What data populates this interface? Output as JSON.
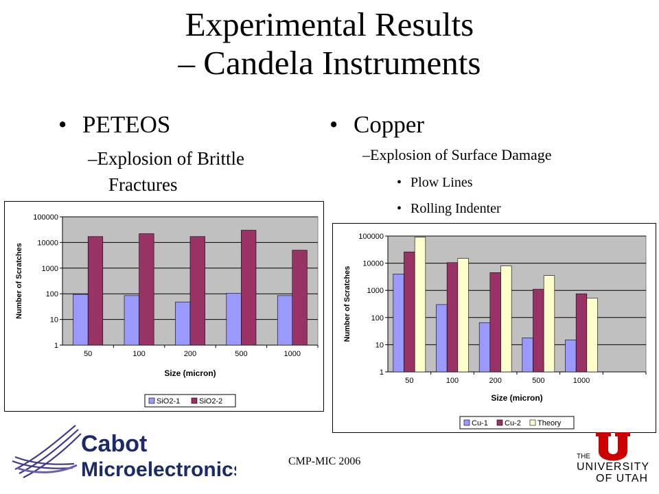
{
  "slide": {
    "title_line1": "Experimental Results",
    "title_line2": "– Candela Instruments",
    "left": {
      "heading": "PETEOS",
      "sub": "–Explosion of Brittle",
      "sub_cont": "Fractures"
    },
    "right": {
      "heading": "Copper",
      "sub": "–Explosion of Surface Damage",
      "bullets": [
        "Plow Lines",
        "Rolling Indenter"
      ]
    },
    "footer": "CMP-MIC 2006",
    "logo_cabot": {
      "line1": "Cabot",
      "line2": "Microelectronics"
    },
    "logo_utah": {
      "line1": "THE",
      "line2": "UNIVERSITY",
      "line3": "OF UTAH"
    }
  },
  "chart_data": [
    {
      "type": "bar",
      "categories": [
        "50",
        "100",
        "200",
        "500",
        "1000"
      ],
      "series": [
        {
          "name": "SiO2-1",
          "values": [
            95,
            85,
            48,
            105,
            85
          ],
          "color": "#9999ff"
        },
        {
          "name": "SiO2-2",
          "values": [
            17000,
            22000,
            17000,
            30000,
            5000
          ],
          "color": "#993366"
        }
      ],
      "xlabel": "Size (micron)",
      "ylabel": "Number of Scratches",
      "yscale": "log",
      "ylim": [
        1,
        100000
      ],
      "yticks": [
        "1",
        "10",
        "100",
        "1000",
        "10000",
        "100000"
      ],
      "grid": true,
      "plot_bg": "#c0c0c0",
      "legend_position": "bottom"
    },
    {
      "type": "bar",
      "categories": [
        "50",
        "100",
        "200",
        "500",
        "1000",
        ""
      ],
      "series": [
        {
          "name": "Cu-1",
          "values": [
            4000,
            300,
            65,
            18,
            15,
            null
          ],
          "color": "#9999ff"
        },
        {
          "name": "Cu-2",
          "values": [
            26000,
            10500,
            4500,
            1100,
            750,
            null
          ],
          "color": "#993366"
        },
        {
          "name": "Theory",
          "values": [
            90000,
            15000,
            8000,
            3500,
            520,
            null
          ],
          "color": "#ffffcc"
        }
      ],
      "xlabel": "Size (micron)",
      "ylabel": "Number of Scratches",
      "yscale": "log",
      "ylim": [
        1,
        100000
      ],
      "yticks": [
        "1",
        "10",
        "100",
        "1000",
        "10000",
        "100000"
      ],
      "grid": true,
      "plot_bg": "#c0c0c0",
      "legend_position": "bottom"
    }
  ]
}
